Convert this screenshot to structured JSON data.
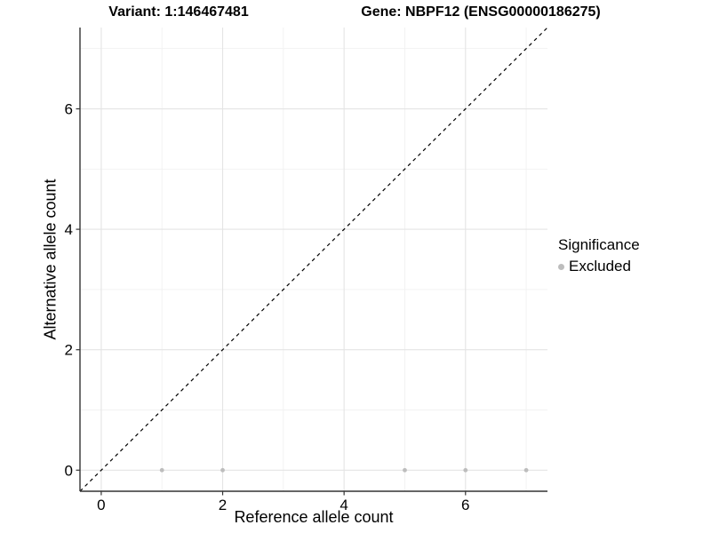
{
  "chart_data": {
    "type": "scatter",
    "title_variant": "Variant: 1:146467481",
    "title_gene": "Gene: NBPF12 (ENSG00000186275)",
    "xlabel": "Reference allele count",
    "ylabel": "Alternative allele count",
    "xlim": [
      -0.35,
      7.35
    ],
    "ylim": [
      -0.35,
      7.35
    ],
    "x_ticks": [
      0,
      2,
      4,
      6
    ],
    "y_ticks": [
      0,
      2,
      4,
      6
    ],
    "x_minor_gridlines": [
      1,
      3,
      5,
      7
    ],
    "y_minor_gridlines": [
      1,
      3,
      5,
      7
    ],
    "grid": true,
    "identity_line": {
      "style": "dashed",
      "color": "#000000",
      "from": [
        -0.35,
        -0.35
      ],
      "to": [
        7.35,
        7.35
      ]
    },
    "series": [
      {
        "name": "Excluded",
        "color": "#bdbdbd",
        "points": [
          {
            "x": 1,
            "y": 0
          },
          {
            "x": 2,
            "y": 0
          },
          {
            "x": 5,
            "y": 0
          },
          {
            "x": 6,
            "y": 0
          },
          {
            "x": 7,
            "y": 0
          }
        ]
      }
    ],
    "legend": {
      "position": "right",
      "title": "Significance",
      "items": [
        {
          "label": "Excluded",
          "color": "#bdbdbd"
        }
      ]
    },
    "colors": {
      "axis_line": "#333333",
      "tick_mark": "#333333",
      "major_grid": "#e4e4e4",
      "minor_grid": "#f1f1f1",
      "background": "#ffffff"
    }
  }
}
